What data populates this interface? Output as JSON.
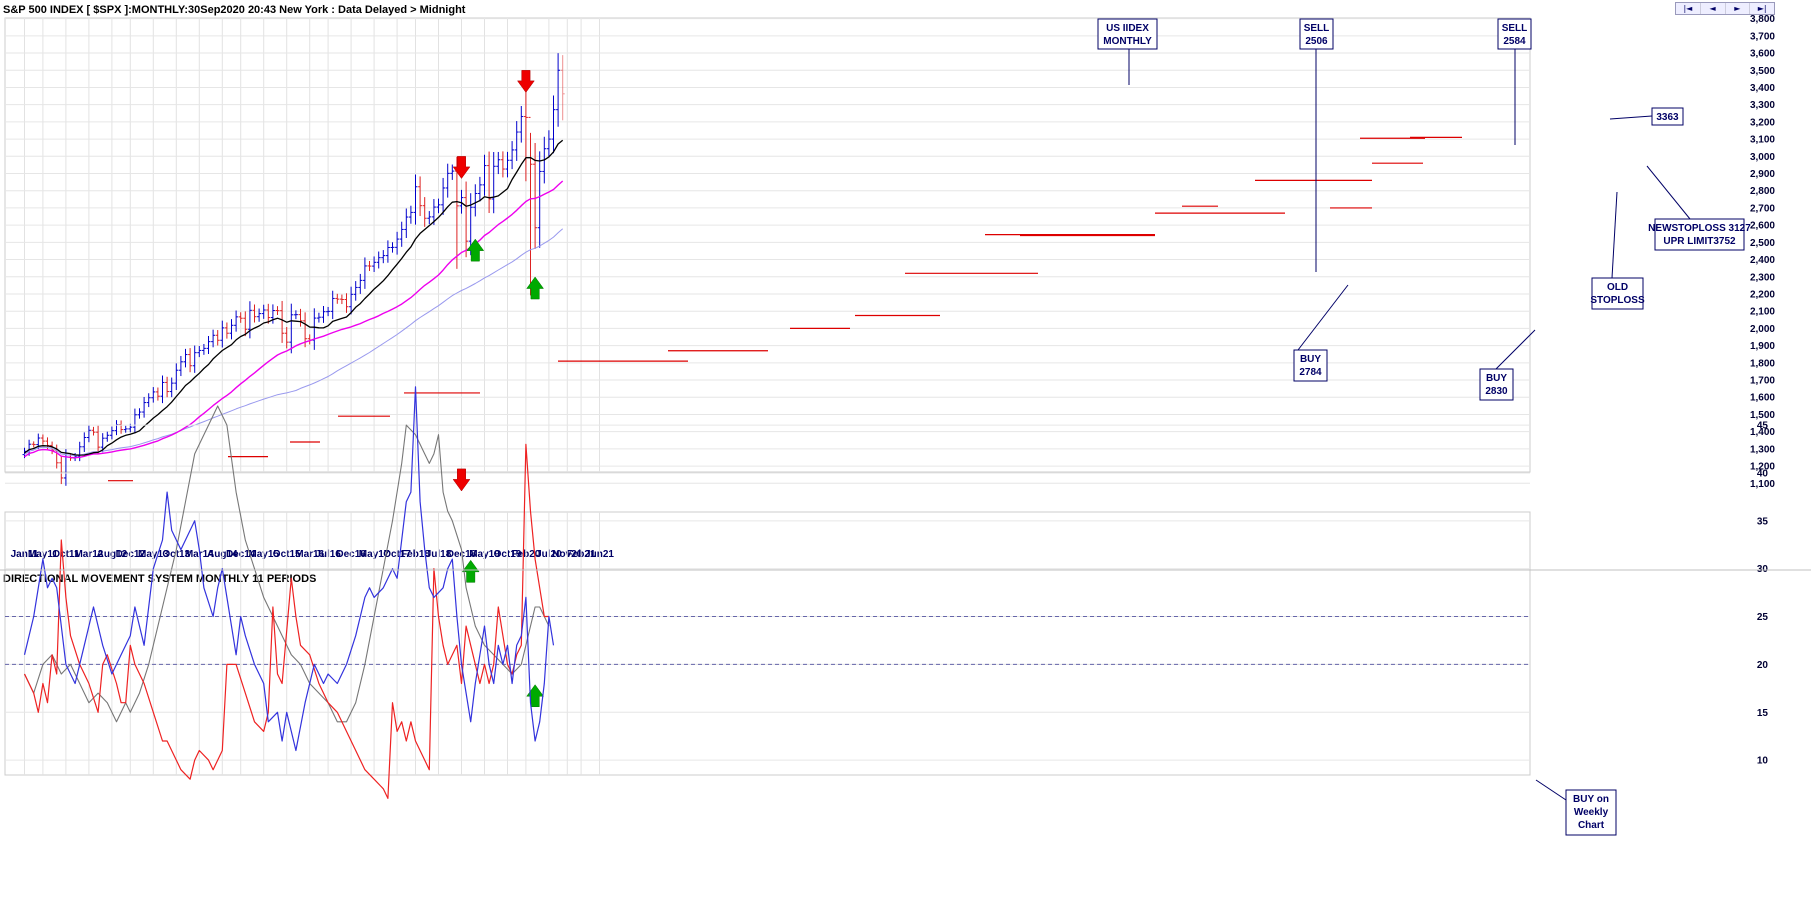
{
  "header": {
    "title": "S&P 500 INDEX [ $SPX ]:MONTHLY:30Sep2020 20:43 New York : Data Delayed > Midnight",
    "lower_title": "DIRECTIONAL MOVEMENT SYSTEM MONTHLY 11 PERIODS"
  },
  "nav": [
    "|◄",
    "◄",
    "►",
    "►|"
  ],
  "colors": {
    "up_bar": "#0000cc",
    "down_bar": "#dd2222",
    "ma_short": "#000000",
    "ma_mid": "#ee00ee",
    "ma_long": "#9999ee",
    "plus_di": "#3333dd",
    "minus_di": "#ee2222",
    "adx": "#777777",
    "level_line": "#dd0000",
    "annotation": "#000066"
  },
  "chart_data": [
    {
      "type": "bar",
      "name": "price",
      "x_labels": [
        "Jan11",
        "May11",
        "Oct11",
        "Mar12",
        "Aug12",
        "Dec12",
        "May13",
        "Oct13",
        "Mar14",
        "Aug14",
        "Dec14",
        "May15",
        "Oct15",
        "Mar16",
        "Jul16",
        "Dec16",
        "May17",
        "Oct17",
        "Feb18",
        "Jul18",
        "Dec18",
        "May19",
        "Oct19",
        "Feb20",
        "Jul20",
        "Nov20",
        "Feb21",
        "Jun21"
      ],
      "x_label_month": [
        0,
        4,
        9,
        14,
        19,
        23,
        28,
        33,
        38,
        43,
        47,
        52,
        57,
        62,
        66,
        71,
        76,
        81,
        85,
        90,
        95,
        100,
        105,
        109,
        114,
        118,
        121,
        125
      ],
      "ylim": [
        1050,
        3900
      ],
      "y_ticks": [
        1100,
        1200,
        1300,
        1400,
        1500,
        1600,
        1700,
        1800,
        1900,
        2000,
        2100,
        2200,
        2300,
        2400,
        2500,
        2600,
        2700,
        2800,
        2900,
        3000,
        3100,
        3200,
        3300,
        3400,
        3500,
        3600,
        3700,
        3800
      ],
      "closes": [
        1286,
        1327,
        1325,
        1363,
        1345,
        1320,
        1292,
        1219,
        1131,
        1253,
        1247,
        1258,
        1312,
        1366,
        1408,
        1397,
        1310,
        1362,
        1379,
        1406,
        1441,
        1412,
        1416,
        1426,
        1498,
        1514,
        1569,
        1597,
        1631,
        1606,
        1686,
        1633,
        1682,
        1757,
        1806,
        1848,
        1783,
        1859,
        1872,
        1884,
        1923,
        1960,
        1931,
        2003,
        1972,
        2018,
        2067,
        2059,
        1995,
        2105,
        2068,
        2086,
        2107,
        2063,
        2104,
        2103,
        1972,
        1920,
        2079,
        2080,
        2044,
        1940,
        1932,
        2060,
        2065,
        2097,
        2099,
        2174,
        2170,
        2168,
        2126,
        2198,
        2238,
        2279,
        2363,
        2362,
        2384,
        2411,
        2423,
        2470,
        2471,
        2519,
        2575,
        2647,
        2674,
        2823,
        2713,
        2640,
        2648,
        2705,
        2718,
        2816,
        2901,
        2914,
        2712,
        2760,
        2507,
        2704,
        2784,
        2834,
        2946,
        2752,
        2942,
        2980,
        2926,
        2977,
        3037,
        3141,
        3231,
        3226,
        2954,
        2585,
        2912,
        3044,
        3100,
        3271,
        3500,
        3363
      ],
      "markers": [
        {
          "type": "sell",
          "month": 95,
          "y": 2920
        },
        {
          "type": "buy",
          "month": 98,
          "y": 2470
        },
        {
          "type": "sell",
          "month": 109,
          "y": 3420
        },
        {
          "type": "buy",
          "month": 111,
          "y": 2250
        }
      ],
      "annotations": [
        {
          "lines": [
            "US IIDEX",
            "MONTHLY"
          ]
        },
        {
          "lines": [
            "SELL",
            "2506"
          ]
        },
        {
          "lines": [
            "SELL",
            "2584"
          ]
        },
        {
          "lines": [
            "3363"
          ]
        },
        {
          "lines": [
            "NEWSTOPLOSS 3127",
            "UPR LIMIT3752"
          ]
        },
        {
          "lines": [
            "OLD",
            "STOPLOSS"
          ]
        },
        {
          "lines": [
            "BUY",
            "2784"
          ]
        },
        {
          "lines": [
            "BUY",
            "2830"
          ]
        }
      ]
    },
    {
      "type": "line",
      "name": "directional-movement",
      "ylim": [
        5,
        52
      ],
      "y_ticks": [
        10,
        15,
        20,
        25,
        30,
        35,
        40,
        45
      ],
      "reference_levels": [
        25,
        20
      ],
      "plus_di_points": [
        [
          0,
          21
        ],
        [
          2,
          25
        ],
        [
          4,
          31
        ],
        [
          5,
          28
        ],
        [
          6,
          29
        ],
        [
          7,
          28
        ],
        [
          9,
          20
        ],
        [
          11,
          18
        ],
        [
          13,
          22
        ],
        [
          15,
          26
        ],
        [
          17,
          22
        ],
        [
          19,
          19
        ],
        [
          21,
          21
        ],
        [
          23,
          23
        ],
        [
          24,
          26
        ],
        [
          26,
          22
        ],
        [
          28,
          30
        ],
        [
          30,
          33
        ],
        [
          31,
          38
        ],
        [
          32,
          34
        ],
        [
          34,
          32
        ],
        [
          35,
          33
        ],
        [
          37,
          35
        ],
        [
          38,
          32
        ],
        [
          39,
          28
        ],
        [
          41,
          25
        ],
        [
          42,
          28
        ],
        [
          43,
          30
        ],
        [
          44,
          27
        ],
        [
          46,
          21
        ],
        [
          47,
          25
        ],
        [
          48,
          23
        ],
        [
          50,
          20
        ],
        [
          52,
          18
        ],
        [
          53,
          14
        ],
        [
          55,
          15
        ],
        [
          56,
          12
        ],
        [
          57,
          15
        ],
        [
          58,
          13
        ],
        [
          59,
          11
        ],
        [
          61,
          16
        ],
        [
          63,
          20
        ],
        [
          65,
          18
        ],
        [
          66,
          19
        ],
        [
          68,
          18
        ],
        [
          70,
          20
        ],
        [
          72,
          23
        ],
        [
          74,
          27
        ],
        [
          75,
          28
        ],
        [
          76,
          27
        ],
        [
          78,
          28
        ],
        [
          80,
          30
        ],
        [
          81,
          29
        ],
        [
          83,
          37
        ],
        [
          84,
          38
        ],
        [
          85,
          49
        ],
        [
          86,
          37
        ],
        [
          87,
          32
        ],
        [
          88,
          28
        ],
        [
          89,
          27
        ],
        [
          91,
          28
        ],
        [
          92,
          30
        ],
        [
          93,
          31
        ],
        [
          94,
          25
        ],
        [
          95,
          20
        ],
        [
          96,
          17
        ],
        [
          97,
          14
        ],
        [
          98,
          18
        ],
        [
          99,
          21
        ],
        [
          100,
          24
        ],
        [
          101,
          20
        ],
        [
          102,
          18
        ],
        [
          103,
          22
        ],
        [
          104,
          20
        ],
        [
          105,
          22
        ],
        [
          106,
          18
        ],
        [
          107,
          22
        ],
        [
          108,
          23
        ],
        [
          109,
          27
        ],
        [
          110,
          16
        ],
        [
          111,
          12
        ],
        [
          112,
          14
        ],
        [
          113,
          18
        ],
        [
          114,
          25
        ],
        [
          115,
          22
        ]
      ],
      "minus_di_points": [
        [
          0,
          19
        ],
        [
          2,
          17
        ],
        [
          3,
          15
        ],
        [
          4,
          18
        ],
        [
          5,
          16
        ],
        [
          6,
          21
        ],
        [
          7,
          19
        ],
        [
          8,
          33
        ],
        [
          9,
          27
        ],
        [
          10,
          23
        ],
        [
          12,
          20
        ],
        [
          14,
          18
        ],
        [
          16,
          15
        ],
        [
          17,
          20
        ],
        [
          18,
          21
        ],
        [
          20,
          18
        ],
        [
          21,
          16
        ],
        [
          22,
          16
        ],
        [
          23,
          22
        ],
        [
          24,
          20
        ],
        [
          26,
          18
        ],
        [
          28,
          15
        ],
        [
          30,
          12
        ],
        [
          31,
          12
        ],
        [
          33,
          10
        ],
        [
          34,
          9
        ],
        [
          36,
          8
        ],
        [
          37,
          10
        ],
        [
          38,
          11
        ],
        [
          40,
          10
        ],
        [
          41,
          9
        ],
        [
          42,
          10
        ],
        [
          43,
          11
        ],
        [
          44,
          20
        ],
        [
          46,
          20
        ],
        [
          48,
          17
        ],
        [
          50,
          14
        ],
        [
          52,
          13
        ],
        [
          53,
          15
        ],
        [
          54,
          26
        ],
        [
          55,
          19
        ],
        [
          56,
          18
        ],
        [
          58,
          29
        ],
        [
          59,
          25
        ],
        [
          60,
          22
        ],
        [
          62,
          21
        ],
        [
          64,
          18
        ],
        [
          66,
          16
        ],
        [
          68,
          15
        ],
        [
          70,
          13
        ],
        [
          72,
          11
        ],
        [
          74,
          9
        ],
        [
          76,
          8
        ],
        [
          78,
          7
        ],
        [
          79,
          6
        ],
        [
          80,
          16
        ],
        [
          81,
          13
        ],
        [
          82,
          14
        ],
        [
          83,
          12
        ],
        [
          84,
          14
        ],
        [
          85,
          12
        ],
        [
          87,
          10
        ],
        [
          88,
          9
        ],
        [
          89,
          30
        ],
        [
          90,
          25
        ],
        [
          91,
          22
        ],
        [
          92,
          20
        ],
        [
          94,
          22
        ],
        [
          95,
          18
        ],
        [
          96,
          24
        ],
        [
          97,
          22
        ],
        [
          98,
          20
        ],
        [
          99,
          18
        ],
        [
          100,
          20
        ],
        [
          101,
          18
        ],
        [
          102,
          20
        ],
        [
          103,
          26
        ],
        [
          104,
          23
        ],
        [
          105,
          20
        ],
        [
          106,
          19
        ],
        [
          107,
          21
        ],
        [
          108,
          22
        ],
        [
          109,
          43
        ],
        [
          110,
          36
        ],
        [
          111,
          31
        ],
        [
          112,
          28
        ],
        [
          113,
          25
        ],
        [
          114,
          25
        ]
      ],
      "adx_points": [
        [
          0,
          19
        ],
        [
          2,
          17
        ],
        [
          4,
          20
        ],
        [
          6,
          21
        ],
        [
          8,
          19
        ],
        [
          10,
          20
        ],
        [
          12,
          18
        ],
        [
          14,
          16
        ],
        [
          16,
          17
        ],
        [
          18,
          16
        ],
        [
          20,
          14
        ],
        [
          21,
          15
        ],
        [
          22,
          16
        ],
        [
          23,
          15
        ],
        [
          25,
          17
        ],
        [
          27,
          20
        ],
        [
          29,
          24
        ],
        [
          31,
          28
        ],
        [
          33,
          32
        ],
        [
          35,
          37
        ],
        [
          37,
          42
        ],
        [
          39,
          44
        ],
        [
          41,
          46
        ],
        [
          42,
          47
        ],
        [
          44,
          45
        ],
        [
          46,
          38
        ],
        [
          48,
          33
        ],
        [
          50,
          30
        ],
        [
          52,
          27
        ],
        [
          54,
          25
        ],
        [
          56,
          23
        ],
        [
          58,
          21
        ],
        [
          60,
          20
        ],
        [
          62,
          18
        ],
        [
          64,
          17
        ],
        [
          66,
          16
        ],
        [
          68,
          14
        ],
        [
          70,
          14
        ],
        [
          72,
          16
        ],
        [
          74,
          20
        ],
        [
          76,
          25
        ],
        [
          78,
          30
        ],
        [
          80,
          35
        ],
        [
          82,
          41
        ],
        [
          83,
          45
        ],
        [
          85,
          44
        ],
        [
          87,
          42
        ],
        [
          88,
          41
        ],
        [
          89,
          42
        ],
        [
          90,
          44
        ],
        [
          91,
          38
        ],
        [
          92,
          36
        ],
        [
          93,
          35
        ],
        [
          95,
          32
        ],
        [
          96,
          28
        ],
        [
          98,
          24
        ],
        [
          100,
          22
        ],
        [
          102,
          21
        ],
        [
          104,
          20
        ],
        [
          106,
          19
        ],
        [
          108,
          20
        ],
        [
          110,
          24
        ],
        [
          111,
          26
        ],
        [
          112,
          26
        ],
        [
          113,
          25
        ],
        [
          114,
          24
        ]
      ],
      "markers": [
        {
          "type": "sell",
          "month": 95,
          "y": 39
        },
        {
          "type": "buy",
          "month": 97,
          "y": 30
        },
        {
          "type": "buy",
          "month": 111,
          "y": 17
        }
      ],
      "annotations": [
        {
          "lines": [
            "BUY on",
            "Weekly",
            "Chart"
          ]
        }
      ]
    }
  ]
}
